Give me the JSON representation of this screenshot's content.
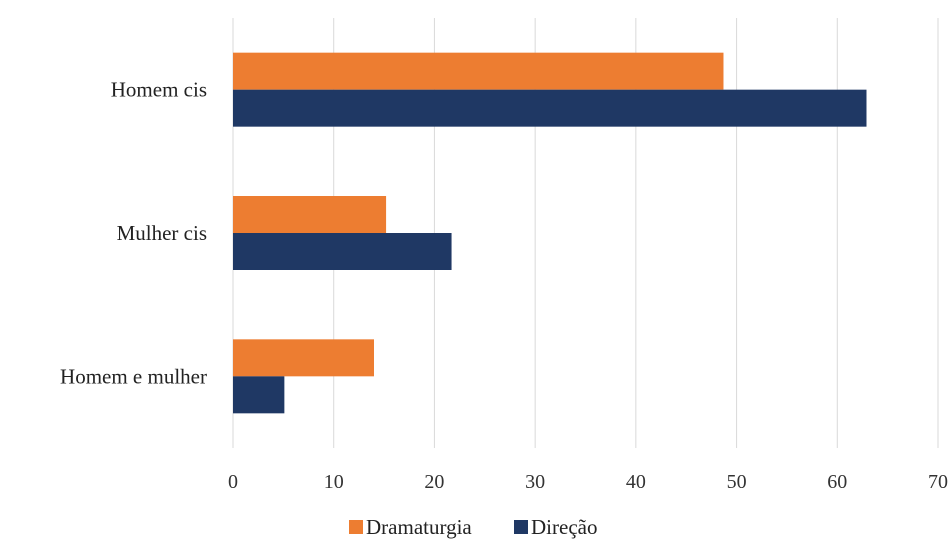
{
  "chart_data": {
    "type": "bar",
    "orientation": "horizontal",
    "categories": [
      "Homem cis",
      "Mulher cis",
      "Homem e mulher"
    ],
    "series": [
      {
        "name": "Dramaturgia",
        "values": [
          48.7,
          15.2,
          14.0
        ],
        "color": "#ED7D31"
      },
      {
        "name": "Direção",
        "values": [
          62.9,
          21.7,
          5.1
        ],
        "color": "#1F3864"
      }
    ],
    "xlim": [
      0,
      70
    ],
    "x_ticks": [
      "0",
      "10",
      "20",
      "30",
      "40",
      "50",
      "60",
      "70"
    ],
    "title": "",
    "xlabel": "",
    "ylabel": "",
    "grid": "vertical",
    "legend_position": "bottom"
  }
}
